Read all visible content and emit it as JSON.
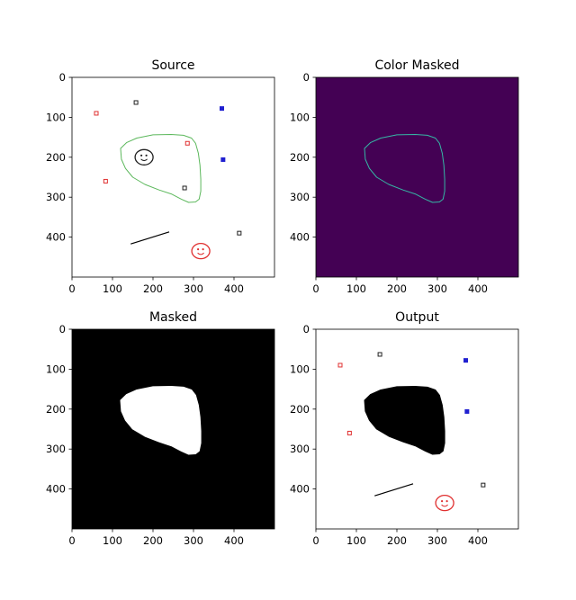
{
  "figure": {
    "background": "#ffffff"
  },
  "chart_data": [
    {
      "type": "image",
      "title": "Source",
      "xlim": [
        0,
        500
      ],
      "ylim": [
        0,
        500
      ],
      "xticks": [
        "0",
        "100",
        "200",
        "300",
        "400"
      ],
      "yticks": [
        "0",
        "100",
        "200",
        "300",
        "400"
      ],
      "image_background": "#ffffff",
      "contents": {
        "blob_outline": {
          "color": "#5cb85c",
          "filled": false
        },
        "squares": [
          {
            "x": 60,
            "y": 90,
            "color": "#e03030"
          },
          {
            "x": 158,
            "y": 63,
            "color": "#202020"
          },
          {
            "x": 370,
            "y": 78,
            "color": "#2020d0",
            "filled": true
          },
          {
            "x": 285,
            "y": 165,
            "color": "#e03030"
          },
          {
            "x": 373,
            "y": 206,
            "color": "#2020d0",
            "filled": true
          },
          {
            "x": 83,
            "y": 260,
            "color": "#e03030"
          },
          {
            "x": 278,
            "y": 277,
            "color": "#202020"
          },
          {
            "x": 413,
            "y": 390,
            "color": "#202020"
          }
        ],
        "smiley_faces": [
          {
            "x": 178,
            "y": 200,
            "color": "#202020"
          },
          {
            "x": 318,
            "y": 435,
            "color": "#e03030"
          }
        ],
        "line": {
          "x1": 145,
          "y1": 417,
          "x2": 240,
          "y2": 387,
          "color": "#000000"
        }
      }
    },
    {
      "type": "image",
      "title": "Color Masked",
      "xlim": [
        0,
        500
      ],
      "ylim": [
        0,
        500
      ],
      "xticks": [
        "0",
        "100",
        "200",
        "300",
        "400"
      ],
      "yticks": [
        "0",
        "100",
        "200",
        "300",
        "400"
      ],
      "image_background": "#440154",
      "contents": {
        "blob_outline": {
          "color": "#35b7a5",
          "filled": false
        }
      }
    },
    {
      "type": "image",
      "title": "Masked",
      "xlim": [
        0,
        500
      ],
      "ylim": [
        0,
        500
      ],
      "xticks": [
        "0",
        "100",
        "200",
        "300",
        "400"
      ],
      "yticks": [
        "0",
        "100",
        "200",
        "300",
        "400"
      ],
      "image_background": "#000000",
      "contents": {
        "blob_outline": {
          "color": "#ffffff",
          "filled": true
        }
      }
    },
    {
      "type": "image",
      "title": "Output",
      "xlim": [
        0,
        500
      ],
      "ylim": [
        0,
        500
      ],
      "xticks": [
        "0",
        "100",
        "200",
        "300",
        "400"
      ],
      "yticks": [
        "0",
        "100",
        "200",
        "300",
        "400"
      ],
      "image_background": "#ffffff",
      "contents": {
        "blob_outline": {
          "color": "#000000",
          "filled": true
        },
        "squares": [
          {
            "x": 60,
            "y": 90,
            "color": "#e03030"
          },
          {
            "x": 158,
            "y": 63,
            "color": "#202020"
          },
          {
            "x": 370,
            "y": 78,
            "color": "#2020d0",
            "filled": true
          },
          {
            "x": 373,
            "y": 206,
            "color": "#2020d0",
            "filled": true
          },
          {
            "x": 83,
            "y": 260,
            "color": "#e03030"
          },
          {
            "x": 413,
            "y": 390,
            "color": "#202020"
          }
        ],
        "smiley_faces": [
          {
            "x": 318,
            "y": 435,
            "color": "#e03030"
          }
        ],
        "line": {
          "x1": 145,
          "y1": 417,
          "x2": 240,
          "y2": 387,
          "color": "#000000"
        }
      }
    }
  ],
  "blob_shape": [
    [
      120,
      178
    ],
    [
      135,
      163
    ],
    [
      160,
      152
    ],
    [
      200,
      144
    ],
    [
      245,
      143
    ],
    [
      275,
      145
    ],
    [
      295,
      152
    ],
    [
      305,
      165
    ],
    [
      312,
      190
    ],
    [
      316,
      220
    ],
    [
      318,
      255
    ],
    [
      318,
      285
    ],
    [
      314,
      305
    ],
    [
      305,
      312
    ],
    [
      288,
      313
    ],
    [
      270,
      305
    ],
    [
      245,
      292
    ],
    [
      215,
      282
    ],
    [
      180,
      268
    ],
    [
      150,
      250
    ],
    [
      132,
      228
    ],
    [
      122,
      205
    ]
  ]
}
